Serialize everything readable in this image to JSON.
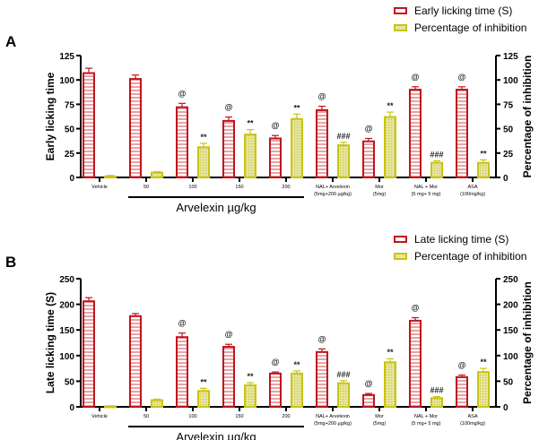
{
  "colors": {
    "series1": "#c0141c",
    "series1_fill": "#e8a3a6",
    "series2": "#c8c415",
    "series2_fill": "#e6e4a0"
  },
  "chart_data": [
    {
      "type": "bar",
      "panel": "A",
      "categories": [
        "Vehicle",
        "50",
        "100",
        "150",
        "200",
        "NAL+ Arvelexin|(5mg+200 µg/kg)",
        "Mor|(5mg)",
        "NAL + Mor|(5 mg+ 5 mg)",
        "ASA|(100mg/kg)"
      ],
      "group_label": "Arvelexin µg/kg",
      "ylabel": "Early licking time",
      "ylabel_right": "Percentage of inhibition",
      "ylim": [
        0,
        125
      ],
      "yticks": [
        0,
        25,
        50,
        75,
        100,
        125
      ],
      "legend_position": "top-right",
      "series": [
        {
          "name": "Early licking time (S)",
          "values": [
            107,
            101,
            72,
            58,
            40,
            69,
            37,
            90,
            90
          ],
          "errors": [
            5,
            4,
            4,
            4,
            3,
            4,
            3,
            3,
            3
          ],
          "annotations": [
            "",
            "",
            "@",
            "@",
            "@",
            "@",
            "@",
            "@",
            "@"
          ]
        },
        {
          "name": "Percentage of inhibition",
          "values": [
            1,
            5,
            31,
            44,
            60,
            33,
            62,
            15,
            15
          ],
          "errors": [
            1,
            1,
            4,
            5,
            5,
            3,
            5,
            2,
            3
          ],
          "annotations": [
            "",
            "",
            "**",
            "**",
            "**",
            "###",
            "**",
            "###",
            "**"
          ]
        }
      ]
    },
    {
      "type": "bar",
      "panel": "B",
      "categories": [
        "Vehicle",
        "50",
        "100",
        "150",
        "200",
        "NAL+ Arvelexin|(5mg+200 µg/kg)",
        "Mor|(5mg)",
        "NAL + Mor|(5 mg+ 5 mg)",
        "ASA|(100mg/kg)"
      ],
      "group_label": "Arvelexin µg/kg",
      "ylabel": "Late licking time (S)",
      "ylabel_right": "Percentage of inhibition",
      "ylim": [
        0,
        250
      ],
      "yticks": [
        0,
        50,
        100,
        150,
        200,
        250
      ],
      "legend_position": "top-right",
      "series": [
        {
          "name": "Late licking time (S)",
          "values": [
            206,
            177,
            136,
            117,
            65,
            107,
            23,
            168,
            58
          ],
          "errors": [
            7,
            5,
            8,
            5,
            3,
            6,
            3,
            6,
            4
          ],
          "annotations": [
            "",
            "",
            "@",
            "@",
            "@",
            "@",
            "@",
            "@",
            "@"
          ]
        },
        {
          "name": "Percentage of inhibition",
          "values": [
            1,
            13,
            31,
            42,
            65,
            46,
            87,
            17,
            68
          ],
          "errors": [
            1,
            2,
            5,
            5,
            5,
            5,
            7,
            3,
            7
          ],
          "annotations": [
            "",
            "",
            "**",
            "**",
            "**",
            "###",
            "**",
            "###",
            "**"
          ]
        }
      ]
    }
  ]
}
